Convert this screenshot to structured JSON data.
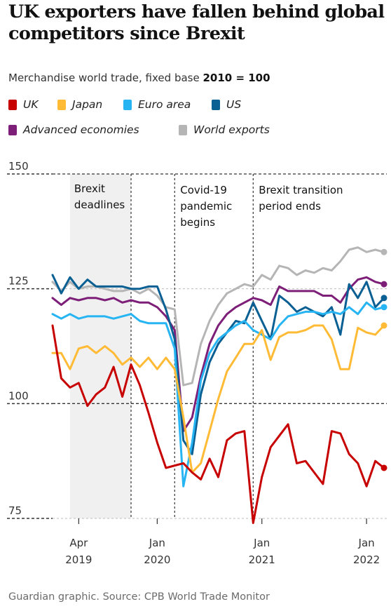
{
  "title": "UK exporters have fallen behind global competitors since Brexit",
  "subtitle": {
    "prefix": "Merchandise world trade, fixed base ",
    "base": "2010 = 100"
  },
  "colors": {
    "UK": "#c70000",
    "Japan": "#ffbb36",
    "Euro area": "#27b4f3",
    "US": "#0a5f93",
    "Advanced economies": "#7d1f78",
    "World exports": "#b5b5b5"
  },
  "source": "Guardian graphic. Source: CPB World Trade Monitor",
  "chart_data": {
    "type": "line",
    "x_start": "2019-01",
    "x_end": "2022-03",
    "ylim": [
      75,
      150
    ],
    "yticks": [
      75,
      100,
      125,
      150
    ],
    "xticks": [
      {
        "date": "2019-04",
        "label": "Apr",
        "year": "2019"
      },
      {
        "date": "2020-01",
        "label": "Jan",
        "year": "2020"
      },
      {
        "date": "2021-01",
        "label": "Jan",
        "year": "2021"
      },
      {
        "date": "2022-01",
        "label": "Jan",
        "year": "2022"
      }
    ],
    "shaded_regions": [
      {
        "start": "2019-03",
        "end": "2019-10",
        "label_lines": [
          "Brexit",
          "deadlines"
        ]
      }
    ],
    "markers": [
      {
        "date": "2020-03",
        "label_lines": [
          "Covid-19",
          "pandemic",
          "begins"
        ]
      },
      {
        "date": "2020-12",
        "label_lines": [
          "Brexit transition",
          "period ends"
        ]
      }
    ],
    "dates": [
      "2019-01",
      "2019-02",
      "2019-03",
      "2019-04",
      "2019-05",
      "2019-06",
      "2019-07",
      "2019-08",
      "2019-09",
      "2019-10",
      "2019-11",
      "2019-12",
      "2020-01",
      "2020-02",
      "2020-03",
      "2020-04",
      "2020-05",
      "2020-06",
      "2020-07",
      "2020-08",
      "2020-09",
      "2020-10",
      "2020-11",
      "2020-12",
      "2021-01",
      "2021-02",
      "2021-03",
      "2021-04",
      "2021-05",
      "2021-06",
      "2021-07",
      "2021-08",
      "2021-09",
      "2021-10",
      "2021-11",
      "2021-12",
      "2022-01",
      "2022-02",
      "2022-03"
    ],
    "series": [
      {
        "name": "World exports",
        "values": [
          126.5,
          124.5,
          126.5,
          125,
          125.5,
          125.5,
          125,
          124.5,
          124.5,
          125,
          124,
          125,
          123.5,
          121,
          120.5,
          104,
          104.5,
          113,
          118,
          121.5,
          124,
          125,
          126,
          125.5,
          128,
          127,
          130,
          129.5,
          128,
          129,
          128.5,
          129.5,
          129,
          131,
          133.5,
          134,
          133,
          133.5,
          133
        ]
      },
      {
        "name": "Advanced economies",
        "values": [
          123,
          121.5,
          123,
          122.5,
          123,
          123,
          122.5,
          123,
          122,
          122.5,
          122,
          122,
          121,
          119,
          116,
          94,
          97,
          106,
          113,
          117,
          119.5,
          121,
          122,
          123,
          122.5,
          121.5,
          125.5,
          124.5,
          124.5,
          124.5,
          124.5,
          123.5,
          123.5,
          122,
          125,
          127,
          127.5,
          126.5,
          126
        ]
      },
      {
        "name": "US",
        "values": [
          128,
          124,
          127.5,
          125,
          127,
          125.5,
          125.5,
          125.5,
          125.5,
          125,
          125,
          125.5,
          125.5,
          120.5,
          114,
          92,
          89,
          102,
          109,
          113,
          115.5,
          118,
          117.5,
          122,
          118,
          114,
          123.5,
          122,
          120,
          121,
          120,
          119,
          121,
          115,
          126,
          123,
          126.5,
          121,
          123
        ]
      },
      {
        "name": "Euro area",
        "values": [
          119.5,
          118.5,
          119.5,
          118.5,
          119,
          119,
          119,
          118.5,
          119,
          119.5,
          118,
          117.5,
          117.5,
          117.5,
          112,
          82,
          91.5,
          105,
          111,
          114,
          115.5,
          117,
          118,
          116,
          115,
          114,
          117,
          119,
          119.5,
          120,
          120,
          119.5,
          120,
          119.5,
          121,
          119.5,
          122,
          120.5,
          121
        ]
      },
      {
        "name": "Japan",
        "values": [
          111,
          111,
          107.5,
          112,
          112.5,
          111,
          112.5,
          111,
          108.5,
          110,
          108,
          110,
          107.5,
          110,
          107.5,
          97,
          85,
          87,
          94,
          101,
          107,
          110,
          113,
          113,
          116,
          109.5,
          114.5,
          115.5,
          115.5,
          116,
          117,
          117,
          114,
          107.5,
          107.5,
          116.5,
          115.5,
          115,
          117
        ]
      },
      {
        "name": "UK",
        "values": [
          117,
          105.5,
          103.5,
          104.5,
          99.5,
          102,
          103.5,
          108,
          101.5,
          108.5,
          104,
          98,
          91.5,
          86,
          86.5,
          87,
          85,
          83.5,
          88,
          84,
          92,
          93.5,
          94,
          74,
          84,
          90.5,
          93,
          95.5,
          87,
          87.5,
          85,
          82.5,
          94,
          93.5,
          89,
          87,
          82,
          87.5,
          86
        ]
      }
    ]
  }
}
